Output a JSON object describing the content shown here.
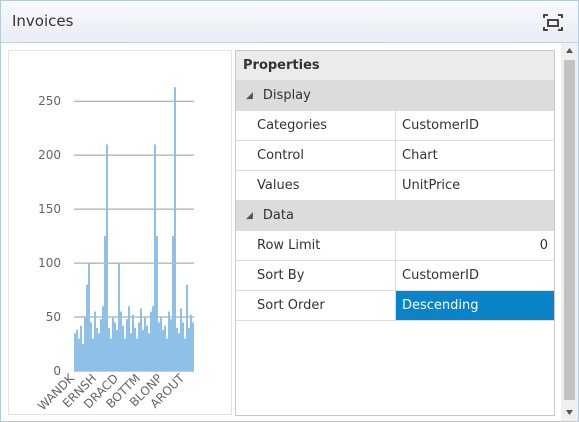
{
  "panel": {
    "title": "Invoices"
  },
  "chart_data": {
    "type": "bar",
    "color": "#8fc1e8",
    "grid": true,
    "categories": [
      "WANDK",
      null,
      null,
      null,
      null,
      null,
      null,
      null,
      null,
      null,
      null,
      "ERNSH",
      null,
      null,
      null,
      null,
      null,
      null,
      null,
      null,
      null,
      null,
      "DRACD",
      null,
      null,
      null,
      null,
      null,
      null,
      null,
      null,
      null,
      null,
      "BOTTM",
      null,
      null,
      null,
      null,
      null,
      null,
      null,
      null,
      null,
      null,
      "BLONP",
      null,
      null,
      null,
      null,
      null,
      null,
      null,
      null,
      null,
      null,
      "AROUT",
      null,
      null,
      null,
      null
    ],
    "values": [
      35,
      38,
      30,
      42,
      25,
      50,
      80,
      100,
      45,
      30,
      55,
      40,
      35,
      48,
      60,
      125,
      210,
      40,
      30,
      50,
      45,
      38,
      100,
      55,
      42,
      30,
      48,
      60,
      35,
      52,
      40,
      30,
      45,
      58,
      38,
      50,
      42,
      35,
      55,
      60,
      210,
      125,
      45,
      50,
      38,
      42,
      30,
      55,
      48,
      125,
      263,
      40,
      35,
      58,
      45,
      30,
      80,
      40,
      52,
      45
    ],
    "ylim": [
      0,
      265
    ],
    "yticks": [
      0,
      50,
      100,
      150,
      200,
      250
    ]
  },
  "properties": {
    "title": "Properties",
    "sections": [
      {
        "name": "Display",
        "rows": [
          {
            "name": "Categories",
            "value": "CustomerID"
          },
          {
            "name": "Control",
            "value": "Chart"
          },
          {
            "name": "Values",
            "value": "UnitPrice"
          }
        ]
      },
      {
        "name": "Data",
        "rows": [
          {
            "name": "Row Limit",
            "value": 0
          },
          {
            "name": "Sort By",
            "value": "CustomerID"
          },
          {
            "name": "Sort Order",
            "value": "Descending",
            "selected": true
          }
        ]
      }
    ]
  }
}
